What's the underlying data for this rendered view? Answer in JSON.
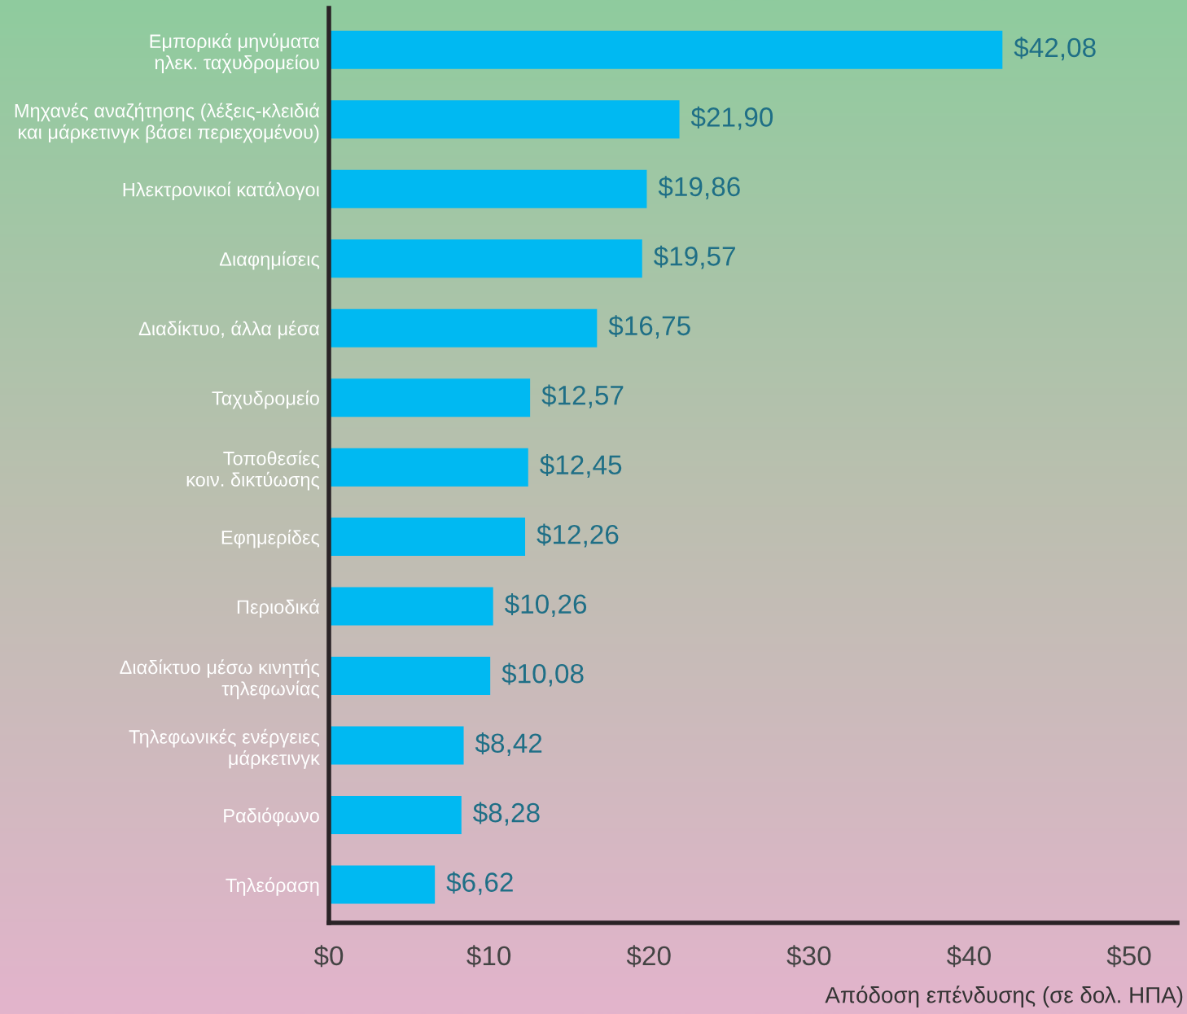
{
  "chart_data": {
    "type": "bar",
    "orientation": "horizontal",
    "categories": [
      "Εμπορικά μηνύματα\nηλεκ. ταχυδρομείου",
      "Μηχανές αναζήτησης (λέξεις-κλειδιά\nκαι μάρκετινγκ βάσει περιεχομένου)",
      "Ηλεκτρονικοί κατάλογοι",
      "Διαφημίσεις",
      "Διαδίκτυο, άλλα μέσα",
      "Ταχυδρομείο",
      "Τοποθεσίες\nκοιν. δικτύωσης",
      "Εφημερίδες",
      "Περιοδικά",
      "Διαδίκτυο μέσω κινητής\nτηλεφωνίας",
      "Τηλεφωνικές ενέργειες\nμάρκετινγκ",
      "Ραδιόφωνο",
      "Τηλεόραση"
    ],
    "values": [
      42.08,
      21.9,
      19.86,
      19.57,
      16.75,
      12.57,
      12.45,
      12.26,
      10.26,
      10.08,
      8.42,
      8.28,
      6.62
    ],
    "value_labels": [
      "$42,08",
      "$21,90",
      "$19,86",
      "$19,57",
      "$16,75",
      "$12,57",
      "$12,45",
      "$12,26",
      "$10,26",
      "$10,08",
      "$8,42",
      "$8,28",
      "$6,62"
    ],
    "color": "#00b9f2",
    "xlabel": "Απόδοση επένδυσης (σε δολ. ΗΠΑ)",
    "xlim": [
      0,
      53
    ],
    "xticks": [
      {
        "value": 0,
        "label": "$0"
      },
      {
        "value": 10,
        "label": "$10"
      },
      {
        "value": 20,
        "label": "$20"
      },
      {
        "value": 30,
        "label": "$30"
      },
      {
        "value": 40,
        "label": "$40"
      },
      {
        "value": 50,
        "label": "$50"
      }
    ],
    "grid": false,
    "legend": false
  }
}
